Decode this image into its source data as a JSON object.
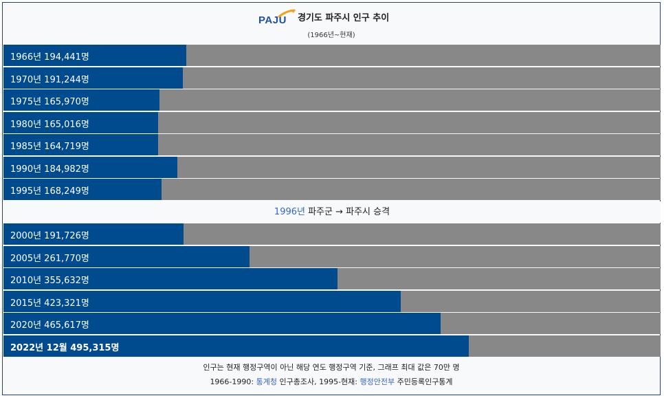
{
  "header": {
    "logo_text": "PAJU",
    "title": "경기도 파주시 인구 추이",
    "subtitle": "(1966년~현재)"
  },
  "colors": {
    "bar": "#004b8d",
    "track": "#888888",
    "link": "#3366cc",
    "logo_blue": "#1d4fa3",
    "logo_orange": "#f5a11a"
  },
  "chart_data": {
    "type": "bar",
    "orientation": "horizontal",
    "title": "경기도 파주시 인구 추이",
    "subtitle": "(1966년~현재)",
    "xlim": [
      0,
      700000
    ],
    "rows": [
      {
        "label": "1966년 194,441명",
        "value": 194441
      },
      {
        "label": "1970년 191,244명",
        "value": 191244
      },
      {
        "label": "1975년 165,970명",
        "value": 165970
      },
      {
        "label": "1980년 165,016명",
        "value": 165016
      },
      {
        "label": "1985년 164,719명",
        "value": 164719
      },
      {
        "label": "1990년 184,982명",
        "value": 184982
      },
      {
        "label": "1995년 168,249명",
        "value": 168249
      },
      {
        "label": "2000년 191,726명",
        "value": 191726
      },
      {
        "label": "2005년 261,770명",
        "value": 261770
      },
      {
        "label": "2010년 355,632명",
        "value": 355632
      },
      {
        "label": "2015년 423,321명",
        "value": 423321
      },
      {
        "label": "2020년 465,617명",
        "value": 465617
      },
      {
        "label": "2022년 12월 495,315명",
        "value": 495315,
        "bold": true
      }
    ]
  },
  "note": {
    "link": "1996년",
    "text": " 파주군 → 파주시 승격"
  },
  "footer": {
    "line1": "인구는 현재 행정구역이 아닌 해당 연도 행정구역 기준, 그래프 최대 값은 70만 명",
    "line2_a": "1966-1990: ",
    "line2_link1": "통계청",
    "line2_b": " 인구총조사, 1995-현재: ",
    "line2_link2": "행정안전부",
    "line2_c": " 주민등록인구통계"
  }
}
